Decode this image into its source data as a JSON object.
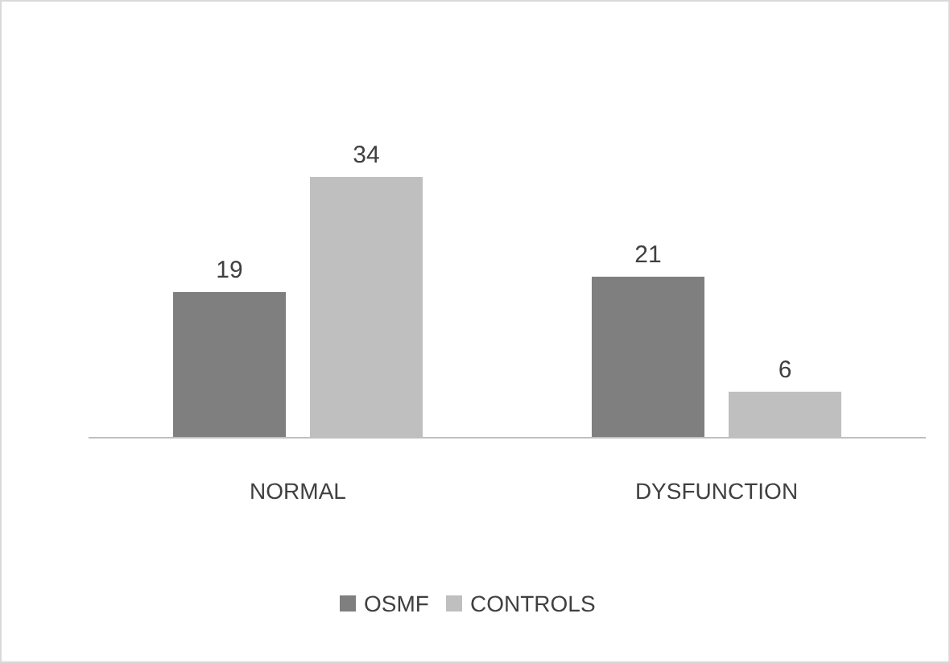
{
  "chart_data": {
    "type": "bar",
    "categories": [
      "NORMAL",
      "DYSFUNCTION"
    ],
    "series": [
      {
        "name": "OSMF",
        "color": "#7f7f7f",
        "values": [
          19,
          21
        ]
      },
      {
        "name": "CONTROLS",
        "color": "#bfbfbf",
        "values": [
          34,
          6
        ]
      }
    ],
    "data_labels": true,
    "legend": "bottom"
  }
}
